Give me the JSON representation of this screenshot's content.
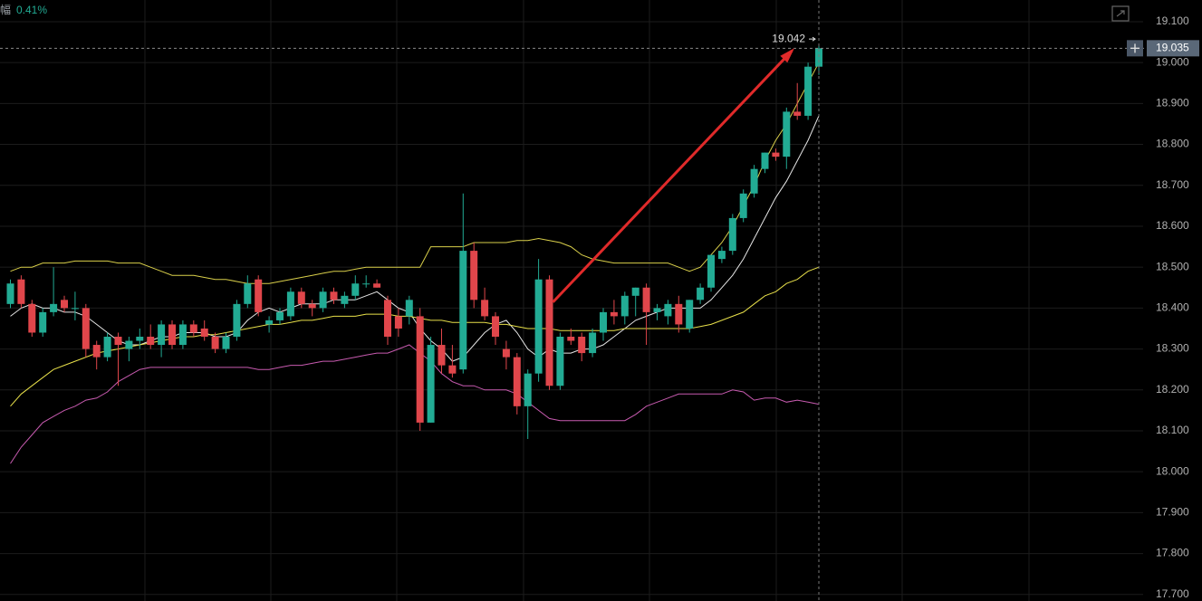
{
  "chart_data": {
    "type": "candlestick",
    "header_label": "幅",
    "header_value": "0.41%",
    "ylim": [
      17.684,
      19.153
    ],
    "yticks": [
      {
        "value": 19.1,
        "label": "19.100"
      },
      {
        "value": 19.0,
        "label": "19.000"
      },
      {
        "value": 18.9,
        "label": "18.900"
      },
      {
        "value": 18.8,
        "label": "18.800"
      },
      {
        "value": 18.7,
        "label": "18.700"
      },
      {
        "value": 18.6,
        "label": "18.600"
      },
      {
        "value": 18.5,
        "label": "18.500"
      },
      {
        "value": 18.4,
        "label": "18.400"
      },
      {
        "value": 18.3,
        "label": "18.300"
      },
      {
        "value": 18.2,
        "label": "18.200"
      },
      {
        "value": 18.1,
        "label": "18.100"
      },
      {
        "value": 18.0,
        "label": "18.000"
      },
      {
        "value": 17.9,
        "label": "17.900"
      },
      {
        "value": 17.8,
        "label": "17.800"
      },
      {
        "value": 17.7,
        "label": "17.700"
      }
    ],
    "up_color": "#22ab94",
    "down_color": "#e0464b",
    "open": [
      18.41,
      18.47,
      18.41,
      18.34,
      18.39,
      18.42,
      18.4,
      18.4,
      18.31,
      18.28,
      18.33,
      18.3,
      18.32,
      18.33,
      18.31,
      18.36,
      18.31,
      18.36,
      18.35,
      18.33,
      18.3,
      18.33,
      18.41,
      18.47,
      18.36,
      18.37,
      18.38,
      18.44,
      18.41,
      18.4,
      18.44,
      18.41,
      18.43,
      18.46,
      18.46,
      18.42,
      18.38,
      18.38,
      18.38,
      18.12,
      18.31,
      18.26,
      18.25,
      18.54,
      18.42,
      18.38,
      18.3,
      18.28,
      18.16,
      18.24,
      18.47,
      18.21,
      18.33,
      18.33,
      18.29,
      18.34,
      18.39,
      18.38,
      18.43,
      18.45,
      18.39,
      18.38,
      18.41,
      18.35,
      18.42,
      18.45,
      18.52,
      18.54,
      18.62,
      18.68,
      18.74,
      18.78,
      18.77,
      18.88,
      18.87,
      18.99
    ],
    "high": [
      18.47,
      18.48,
      18.42,
      18.4,
      18.5,
      18.43,
      18.44,
      18.41,
      18.32,
      18.34,
      18.34,
      18.33,
      18.35,
      18.36,
      18.37,
      18.37,
      18.37,
      18.37,
      18.37,
      18.34,
      18.34,
      18.42,
      18.48,
      18.48,
      18.38,
      18.4,
      18.45,
      18.45,
      18.42,
      18.45,
      18.45,
      18.44,
      18.48,
      18.48,
      18.47,
      18.43,
      18.4,
      18.43,
      18.4,
      18.33,
      18.35,
      18.31,
      18.68,
      18.56,
      18.45,
      18.39,
      18.32,
      18.29,
      18.25,
      18.52,
      18.48,
      18.34,
      18.35,
      18.34,
      18.35,
      18.4,
      18.42,
      18.44,
      18.45,
      18.46,
      18.41,
      18.42,
      18.43,
      18.42,
      18.46,
      18.53,
      18.55,
      18.63,
      18.69,
      18.75,
      18.78,
      18.79,
      18.89,
      18.95,
      19.0,
      19.042
    ],
    "low": [
      18.4,
      18.4,
      18.33,
      18.33,
      18.38,
      18.39,
      18.37,
      18.28,
      18.25,
      18.27,
      18.21,
      18.27,
      18.3,
      18.3,
      18.28,
      18.3,
      18.3,
      18.33,
      18.32,
      18.29,
      18.29,
      18.32,
      18.4,
      18.38,
      18.34,
      18.36,
      18.37,
      18.4,
      18.38,
      18.39,
      18.41,
      18.4,
      18.42,
      18.45,
      18.45,
      18.31,
      18.33,
      18.36,
      18.1,
      18.12,
      18.24,
      18.23,
      18.24,
      18.4,
      18.37,
      18.31,
      18.25,
      18.14,
      18.08,
      18.22,
      18.2,
      18.2,
      18.31,
      18.27,
      18.28,
      18.32,
      18.36,
      18.36,
      18.38,
      18.31,
      18.37,
      18.36,
      18.34,
      18.34,
      18.41,
      18.44,
      18.51,
      18.53,
      18.61,
      18.67,
      18.73,
      18.76,
      18.74,
      18.86,
      18.86,
      18.97
    ],
    "close": [
      18.46,
      18.41,
      18.34,
      18.39,
      18.41,
      18.4,
      18.4,
      18.3,
      18.28,
      18.33,
      18.31,
      18.32,
      18.33,
      18.31,
      18.36,
      18.31,
      18.36,
      18.34,
      18.33,
      18.3,
      18.33,
      18.41,
      18.46,
      18.39,
      18.37,
      18.39,
      18.44,
      18.41,
      18.4,
      18.44,
      18.42,
      18.43,
      18.46,
      18.46,
      18.45,
      18.33,
      18.35,
      18.42,
      18.12,
      18.31,
      18.26,
      18.24,
      18.54,
      18.42,
      18.38,
      18.33,
      18.28,
      18.16,
      18.24,
      18.47,
      18.21,
      18.33,
      18.32,
      18.29,
      18.34,
      18.39,
      18.38,
      18.43,
      18.45,
      18.39,
      18.4,
      18.41,
      18.36,
      18.42,
      18.45,
      18.53,
      18.54,
      18.62,
      18.68,
      18.74,
      18.78,
      18.77,
      18.88,
      18.87,
      18.99,
      19.035
    ],
    "series": [
      {
        "color": "#d9cf4a",
        "values": [
          18.49,
          18.5,
          18.5,
          18.51,
          18.51,
          18.51,
          18.515,
          18.515,
          18.515,
          18.515,
          18.51,
          18.51,
          18.51,
          18.5,
          18.49,
          18.48,
          18.48,
          18.48,
          18.475,
          18.47,
          18.47,
          18.465,
          18.46,
          18.46,
          18.46,
          18.465,
          18.47,
          18.475,
          18.48,
          18.485,
          18.49,
          18.49,
          18.495,
          18.5,
          18.5,
          18.5,
          18.5,
          18.5,
          18.5,
          18.55,
          18.55,
          18.55,
          18.55,
          18.56,
          18.56,
          18.56,
          18.56,
          18.565,
          18.565,
          18.57,
          18.565,
          18.56,
          18.55,
          18.53,
          18.52,
          18.515,
          18.51,
          18.51,
          18.51,
          18.51,
          18.51,
          18.51,
          18.5,
          18.49,
          18.5,
          18.53,
          18.56,
          18.6,
          18.65,
          18.7,
          18.76,
          18.81,
          18.85,
          18.9,
          18.95,
          19.0
        ]
      },
      {
        "color": "#c85bb0",
        "values": [
          18.02,
          18.06,
          18.09,
          18.12,
          18.135,
          18.15,
          18.16,
          18.175,
          18.18,
          18.195,
          18.22,
          18.235,
          18.25,
          18.255,
          18.255,
          18.255,
          18.255,
          18.255,
          18.255,
          18.255,
          18.255,
          18.255,
          18.255,
          18.25,
          18.25,
          18.255,
          18.26,
          18.26,
          18.265,
          18.27,
          18.27,
          18.275,
          18.28,
          18.285,
          18.29,
          18.29,
          18.3,
          18.31,
          18.29,
          18.27,
          18.24,
          18.22,
          18.21,
          18.21,
          18.2,
          18.2,
          18.2,
          18.19,
          18.17,
          18.15,
          18.13,
          18.125,
          18.125,
          18.125,
          18.125,
          18.125,
          18.125,
          18.125,
          18.14,
          18.16,
          18.17,
          18.18,
          18.19,
          18.19,
          18.19,
          18.19,
          18.19,
          18.2,
          18.195,
          18.175,
          18.18,
          18.18,
          18.17,
          18.175,
          18.17,
          18.165
        ]
      },
      {
        "color": "#e6e6e6",
        "values": [
          18.38,
          18.4,
          18.41,
          18.4,
          18.4,
          18.39,
          18.39,
          18.38,
          18.36,
          18.34,
          18.32,
          18.31,
          18.31,
          18.32,
          18.33,
          18.33,
          18.34,
          18.34,
          18.34,
          18.33,
          18.33,
          18.34,
          18.37,
          18.39,
          18.4,
          18.39,
          18.4,
          18.41,
          18.41,
          18.41,
          18.42,
          18.42,
          18.42,
          18.43,
          18.44,
          18.42,
          18.4,
          18.39,
          18.35,
          18.32,
          18.3,
          18.27,
          18.28,
          18.31,
          18.34,
          18.36,
          18.37,
          18.34,
          18.3,
          18.28,
          18.3,
          18.29,
          18.29,
          18.3,
          18.3,
          18.31,
          18.33,
          18.35,
          18.37,
          18.38,
          18.39,
          18.4,
          18.4,
          18.4,
          18.4,
          18.42,
          18.45,
          18.48,
          18.52,
          18.57,
          18.62,
          18.67,
          18.71,
          18.76,
          18.81,
          18.87
        ]
      },
      {
        "color": "#e8e04a",
        "values": [
          18.16,
          18.19,
          18.21,
          18.23,
          18.25,
          18.26,
          18.27,
          18.28,
          18.29,
          18.295,
          18.3,
          18.305,
          18.31,
          18.315,
          18.32,
          18.325,
          18.33,
          18.33,
          18.335,
          18.335,
          18.34,
          18.345,
          18.35,
          18.355,
          18.36,
          18.36,
          18.365,
          18.37,
          18.37,
          18.375,
          18.38,
          18.38,
          18.38,
          18.385,
          18.385,
          18.385,
          18.38,
          18.38,
          18.375,
          18.37,
          18.37,
          18.365,
          18.365,
          18.365,
          18.365,
          18.36,
          18.36,
          18.355,
          18.35,
          18.35,
          18.35,
          18.345,
          18.345,
          18.345,
          18.345,
          18.345,
          18.345,
          18.35,
          18.35,
          18.35,
          18.35,
          18.35,
          18.35,
          18.35,
          18.355,
          18.36,
          18.37,
          18.38,
          18.39,
          18.41,
          18.43,
          18.44,
          18.46,
          18.47,
          18.49,
          18.5
        ]
      }
    ]
  }
}
